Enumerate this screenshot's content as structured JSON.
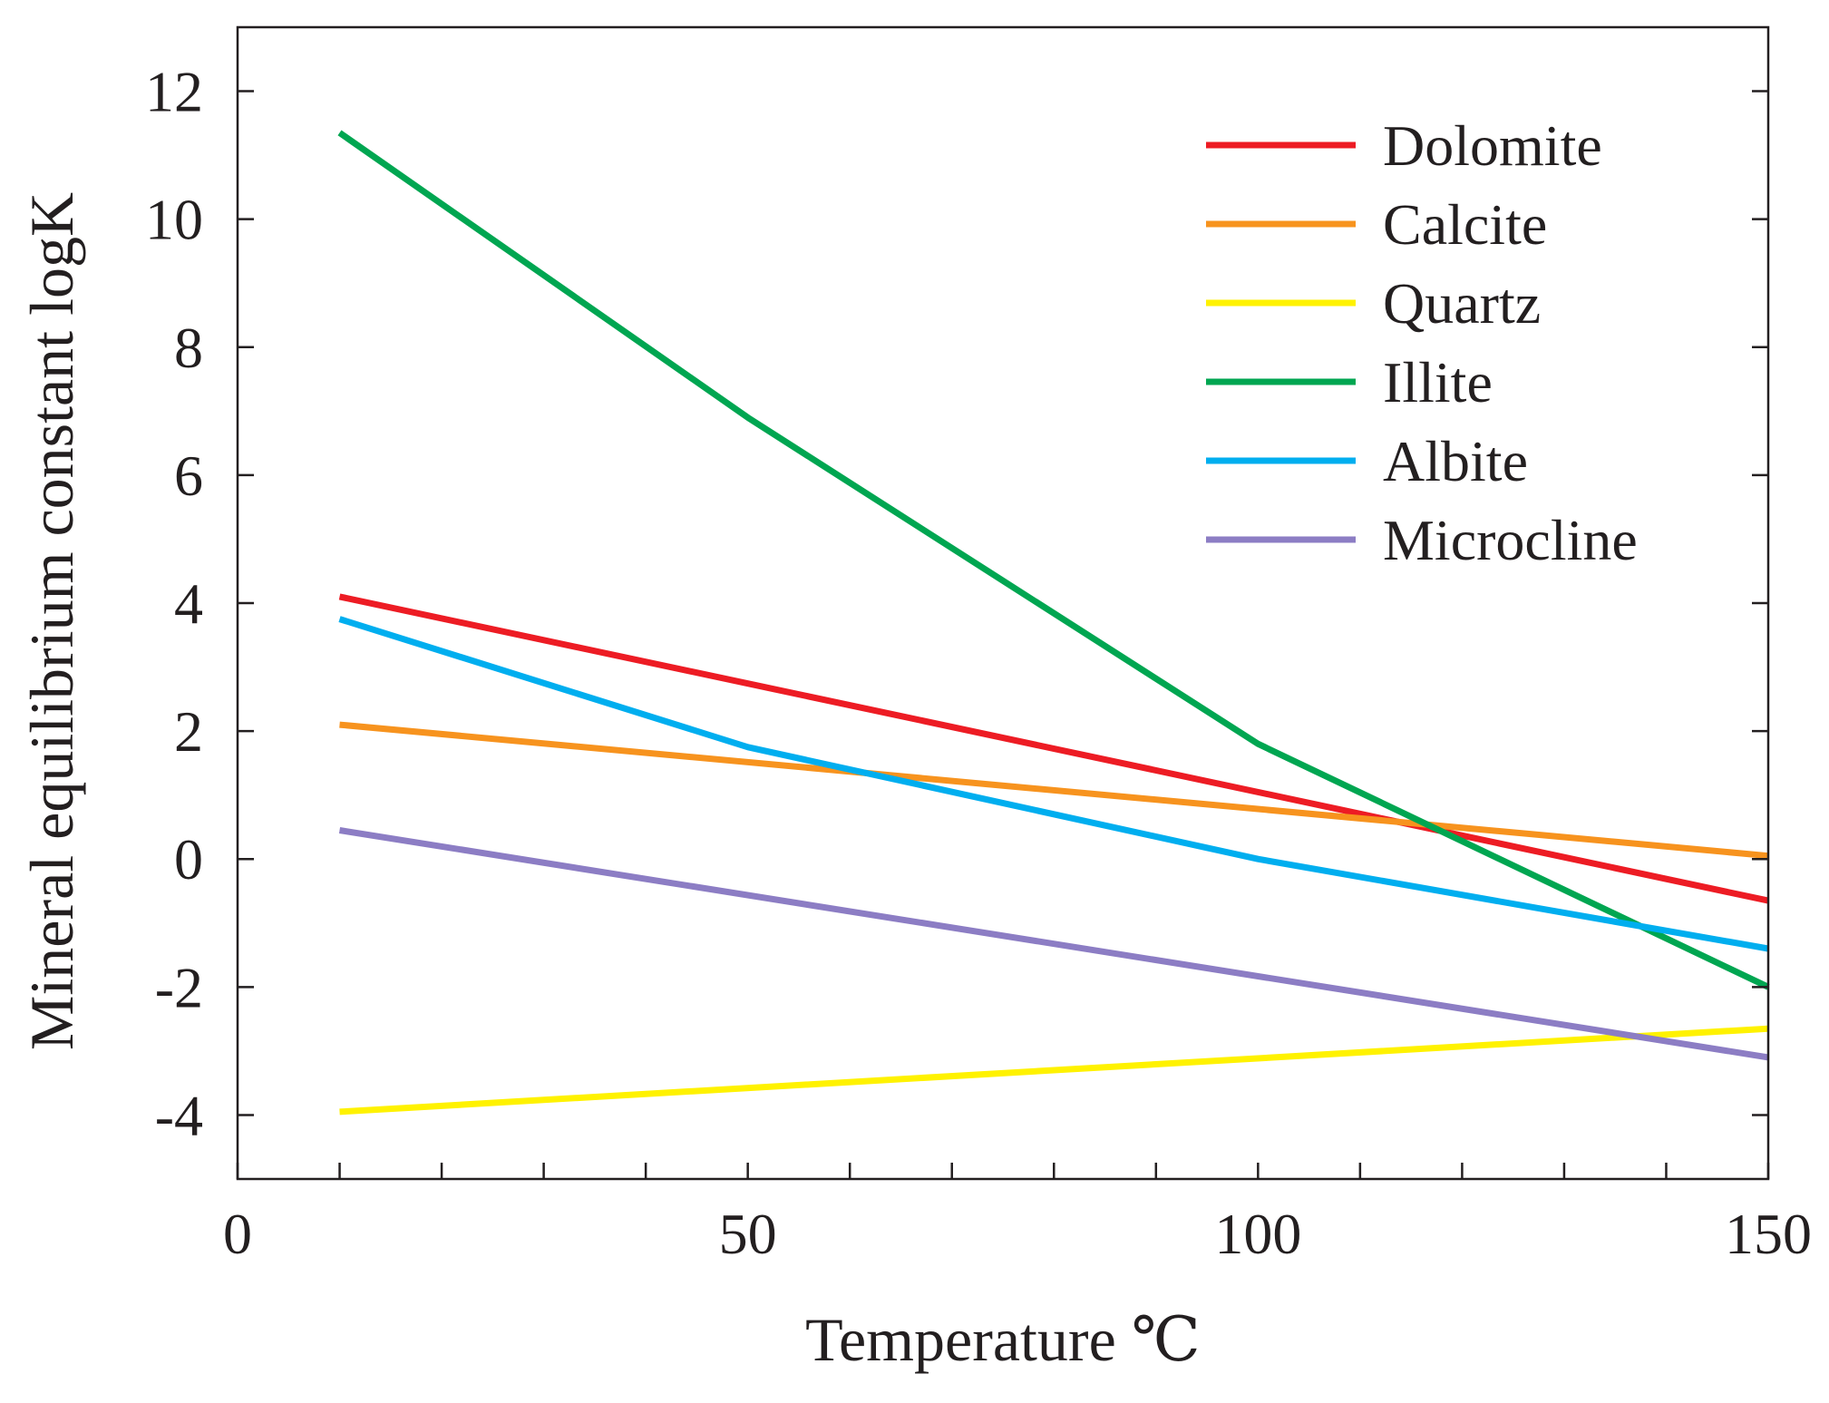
{
  "chart_data": {
    "type": "line",
    "title": "",
    "xlabel": "Temperature ℃",
    "ylabel": "Mineral equilibrium constant logK",
    "xlim": [
      0,
      150
    ],
    "ylim": [
      -5,
      13
    ],
    "x_ticks": [
      0,
      50,
      100,
      150
    ],
    "x_tick_labels": [
      "0",
      "50",
      "100",
      "150"
    ],
    "y_ticks": [
      -4,
      -2,
      0,
      2,
      4,
      6,
      8,
      10,
      12
    ],
    "y_tick_labels": [
      "-4",
      "-2",
      "0",
      "2",
      "4",
      "6",
      "8",
      "10",
      "12"
    ],
    "grid": false,
    "legend_position": "top-right",
    "series": [
      {
        "name": "Dolomite",
        "color": "#ed1c24",
        "x": [
          10,
          150
        ],
        "y": [
          4.1,
          -0.65
        ]
      },
      {
        "name": "Calcite",
        "color": "#f7931e",
        "x": [
          10,
          150
        ],
        "y": [
          2.1,
          0.05
        ]
      },
      {
        "name": "Quartz",
        "color": "#fff200",
        "x": [
          10,
          150
        ],
        "y": [
          -3.95,
          -2.65
        ]
      },
      {
        "name": "Illite",
        "color": "#00a651",
        "x": [
          10,
          50,
          100,
          150
        ],
        "y": [
          11.35,
          6.9,
          1.8,
          -2.0
        ]
      },
      {
        "name": "Albite",
        "color": "#00aeef",
        "x": [
          10,
          50,
          100,
          150
        ],
        "y": [
          3.75,
          1.75,
          0.0,
          -1.4
        ]
      },
      {
        "name": "Microcline",
        "color": "#8c7dc4",
        "x": [
          10,
          150
        ],
        "y": [
          0.45,
          -3.1
        ]
      }
    ]
  }
}
